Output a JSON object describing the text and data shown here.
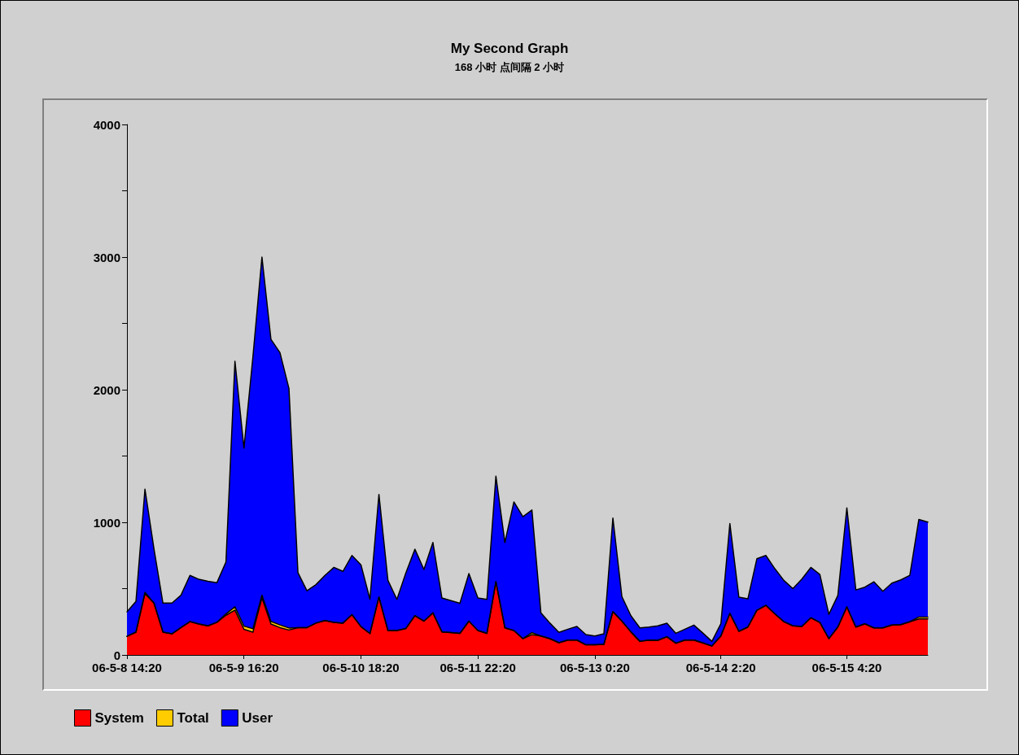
{
  "chart_data": {
    "type": "area",
    "title": "My Second Graph",
    "subtitle": "168 小时 点间隔 2 小时",
    "categories": [
      "06-5-8 14:20",
      null,
      null,
      null,
      null,
      null,
      null,
      null,
      null,
      null,
      null,
      null,
      null,
      "06-5-9 16:20",
      null,
      null,
      null,
      null,
      null,
      null,
      null,
      null,
      null,
      null,
      null,
      null,
      "06-5-10 18:20",
      null,
      null,
      null,
      null,
      null,
      null,
      null,
      null,
      null,
      null,
      null,
      null,
      "06-5-11 22:20",
      null,
      null,
      null,
      null,
      null,
      null,
      null,
      null,
      null,
      null,
      null,
      null,
      "06-5-13 0:20",
      null,
      null,
      null,
      null,
      null,
      null,
      null,
      null,
      null,
      null,
      null,
      null,
      null,
      "06-5-14 2:20",
      null,
      null,
      null,
      null,
      null,
      null,
      null,
      null,
      null,
      null,
      null,
      null,
      null,
      "06-5-15 4:20",
      null,
      null,
      null,
      null,
      null,
      null,
      null,
      null,
      null
    ],
    "series": [
      {
        "name": "System",
        "color": "#ff0000",
        "values": [
          140,
          172,
          462,
          391,
          172,
          159,
          206,
          251,
          233,
          219,
          246,
          299,
          338,
          193,
          172,
          431,
          233,
          206,
          188,
          206,
          206,
          240,
          259,
          246,
          240,
          304,
          214,
          161,
          436,
          184,
          184,
          200,
          296,
          255,
          317,
          174,
          168,
          163,
          255,
          184,
          163,
          552,
          204,
          184,
          123,
          153,
          143,
          123,
          92,
          112,
          112,
          76,
          76,
          80,
          327,
          255,
          174,
          102,
          112,
          110,
          137,
          88,
          112,
          112,
          90,
          67,
          143,
          313,
          178,
          210,
          337,
          374,
          310,
          251,
          219,
          215,
          280,
          245,
          123,
          210,
          362,
          210,
          235,
          204,
          204,
          225,
          229,
          250,
          272,
          272
        ]
      },
      {
        "name": "Total",
        "color": "#ffcc00",
        "values": [
          0,
          0,
          10,
          0,
          0,
          0,
          0,
          0,
          0,
          0,
          0,
          10,
          25,
          25,
          25,
          20,
          20,
          20,
          15,
          0,
          0,
          0,
          0,
          0,
          0,
          0,
          0,
          0,
          0,
          0,
          0,
          0,
          0,
          0,
          0,
          0,
          0,
          0,
          0,
          0,
          0,
          0,
          0,
          0,
          0,
          15,
          0,
          0,
          0,
          0,
          0,
          0,
          0,
          0,
          0,
          0,
          0,
          0,
          0,
          0,
          0,
          0,
          0,
          0,
          0,
          0,
          0,
          0,
          0,
          0,
          0,
          0,
          0,
          0,
          0,
          0,
          0,
          0,
          0,
          0,
          0,
          0,
          0,
          0,
          0,
          0,
          0,
          0,
          14,
          14
        ]
      },
      {
        "name": "User",
        "color": "#0000ff",
        "values": [
          185,
          232,
          778,
          409,
          219,
          232,
          244,
          349,
          337,
          336,
          299,
          391,
          1852,
          1342,
          2053,
          2549,
          2127,
          2054,
          1807,
          414,
          278,
          290,
          341,
          414,
          390,
          446,
          466,
          259,
          774,
          378,
          235,
          420,
          501,
          389,
          531,
          255,
          242,
          227,
          358,
          245,
          256,
          796,
          644,
          970,
          919,
          925,
          174,
          117,
          78,
          82,
          103,
          77,
          67,
          80,
          705,
          185,
          122,
          102,
          98,
          109,
          102,
          75,
          82,
          113,
          75,
          35,
          92,
          678,
          257,
          213,
          388,
          376,
          340,
          311,
          281,
          357,
          380,
          362,
          183,
          239,
          747,
          280,
          276,
          348,
          276,
          316,
          337,
          350,
          736,
          715
        ]
      }
    ],
    "stacked": true,
    "ylim": [
      0,
      4000
    ],
    "yticks": [
      0,
      {
        "value": 500,
        "label": null
      },
      1000,
      {
        "value": 1500,
        "label": null
      },
      2000,
      {
        "value": 2500,
        "label": null
      },
      3000,
      {
        "value": 3500,
        "label": null
      },
      4000
    ],
    "legend": "bottom left"
  }
}
